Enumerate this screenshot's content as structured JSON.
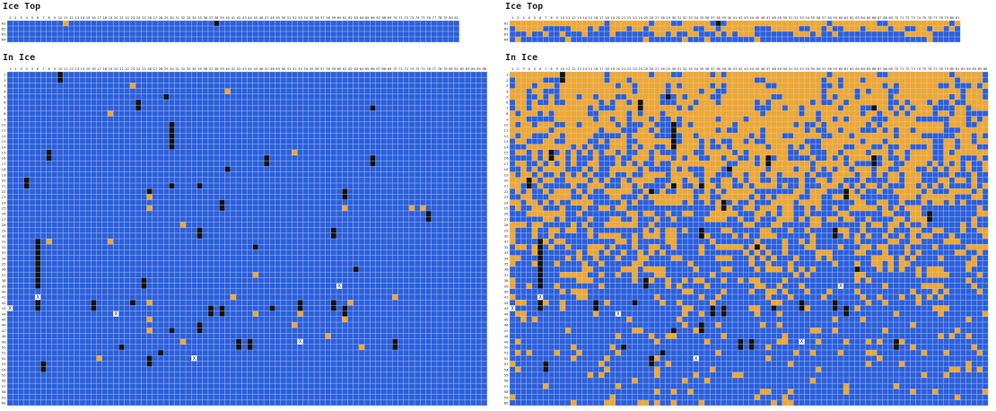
{
  "panels": [
    {
      "ice_top_title": "Ice Top",
      "in_ice_title": "In Ice",
      "ice_top": {
        "row_labels": [
          "61",
          "62",
          "63",
          "64"
        ],
        "cells": [
          [
            0,
            "11",
            "o"
          ],
          [
            0,
            "38",
            "k"
          ]
        ]
      },
      "in_ice": {
        "row_labels": [
          "1",
          "2",
          "3",
          "4",
          "5",
          "6",
          "7",
          "8",
          "9",
          "10",
          "11",
          "12",
          "13",
          "14",
          "15",
          "16",
          "17",
          "18",
          "19",
          "20",
          "21",
          "22",
          "23",
          "24",
          "25",
          "26",
          "27",
          "28",
          "29",
          "30",
          "31",
          "32",
          "33",
          "34",
          "35",
          "36",
          "37",
          "38",
          "39",
          "40",
          "41",
          "42",
          "43",
          "44",
          "45",
          "46",
          "47",
          "48",
          "49",
          "50",
          "51",
          "52",
          "53",
          "54",
          "55",
          "56",
          "57",
          "58",
          "59",
          "60"
        ],
        "cells": [
          [
            0,
            "10",
            "k"
          ],
          [
            1,
            "10",
            "k"
          ],
          [
            2,
            "23",
            "o"
          ],
          [
            3,
            "40",
            "o"
          ],
          [
            4,
            "29",
            "k"
          ],
          [
            5,
            "24",
            "k"
          ],
          [
            6,
            "24",
            "k"
          ],
          [
            6,
            "66",
            "k"
          ],
          [
            7,
            "19",
            "o"
          ],
          [
            9,
            "30",
            "k"
          ],
          [
            10,
            "30",
            "k"
          ],
          [
            11,
            "30",
            "k"
          ],
          [
            12,
            "30",
            "k"
          ],
          [
            13,
            "30",
            "k"
          ],
          [
            14,
            "8",
            "k"
          ],
          [
            15,
            "8",
            "k"
          ],
          [
            14,
            "52",
            "o"
          ],
          [
            15,
            "47",
            "k"
          ],
          [
            16,
            "47",
            "k"
          ],
          [
            15,
            "66",
            "k"
          ],
          [
            16,
            "66",
            "k"
          ],
          [
            17,
            "40",
            "k"
          ],
          [
            19,
            "4",
            "k"
          ],
          [
            20,
            "4",
            "k"
          ],
          [
            20,
            "30",
            "k"
          ],
          [
            20,
            "35",
            "k"
          ],
          [
            21,
            "26",
            "k"
          ],
          [
            22,
            "26",
            "o"
          ],
          [
            21,
            "61",
            "k"
          ],
          [
            22,
            "61",
            "k"
          ],
          [
            23,
            "39",
            "k"
          ],
          [
            24,
            "39",
            "k"
          ],
          [
            24,
            "26",
            "o"
          ],
          [
            24,
            "61",
            "o"
          ],
          [
            24,
            "73",
            "o"
          ],
          [
            24,
            "75",
            "o"
          ],
          [
            25,
            "76",
            "k"
          ],
          [
            26,
            "76",
            "k"
          ],
          [
            27,
            "32",
            "o"
          ],
          [
            28,
            "35",
            "k"
          ],
          [
            29,
            "35",
            "k"
          ],
          [
            28,
            "59",
            "k"
          ],
          [
            29,
            "59",
            "k"
          ],
          [
            30,
            "6",
            "k"
          ],
          [
            31,
            "6",
            "k"
          ],
          [
            32,
            "6",
            "k"
          ],
          [
            33,
            "6",
            "k"
          ],
          [
            34,
            "6",
            "k"
          ],
          [
            35,
            "6",
            "k"
          ],
          [
            36,
            "6",
            "k"
          ],
          [
            37,
            "6",
            "k"
          ],
          [
            38,
            "6",
            "k"
          ],
          [
            30,
            "8",
            "o"
          ],
          [
            30,
            "19",
            "o"
          ],
          [
            31,
            "45",
            "k"
          ],
          [
            36,
            "45",
            "o"
          ],
          [
            35,
            "63",
            "k"
          ],
          [
            37,
            "25",
            "k"
          ],
          [
            38,
            "25",
            "k"
          ],
          [
            38,
            "60",
            "x"
          ],
          [
            40,
            "6",
            "x"
          ],
          [
            41,
            "6",
            "k"
          ],
          [
            42,
            "6",
            "k"
          ],
          [
            42,
            "1",
            "x"
          ],
          [
            41,
            "16",
            "k"
          ],
          [
            42,
            "16",
            "k"
          ],
          [
            41,
            "23",
            "k"
          ],
          [
            41,
            "26",
            "o"
          ],
          [
            40,
            "41",
            "o"
          ],
          [
            41,
            "53",
            "k"
          ],
          [
            42,
            "53",
            "k"
          ],
          [
            41,
            "59",
            "k"
          ],
          [
            42,
            "59",
            "k"
          ],
          [
            41,
            "62",
            "o"
          ],
          [
            42,
            "61",
            "k"
          ],
          [
            43,
            "61",
            "k"
          ],
          [
            40,
            "70",
            "o"
          ],
          [
            43,
            "20",
            "x"
          ],
          [
            43,
            "45",
            "o"
          ],
          [
            43,
            "53",
            "o"
          ],
          [
            42,
            "37",
            "k"
          ],
          [
            43,
            "37",
            "k"
          ],
          [
            42,
            "39",
            "k"
          ],
          [
            43,
            "39",
            "k"
          ],
          [
            42,
            "48",
            "k"
          ],
          [
            44,
            "26",
            "o"
          ],
          [
            45,
            "35",
            "k"
          ],
          [
            46,
            "35",
            "k"
          ],
          [
            45,
            "52",
            "o"
          ],
          [
            44,
            "61",
            "o"
          ],
          [
            46,
            "26",
            "o"
          ],
          [
            46,
            "30",
            "k"
          ],
          [
            48,
            "32",
            "o"
          ],
          [
            47,
            "58",
            "o"
          ],
          [
            49,
            "21",
            "k"
          ],
          [
            49,
            "64",
            "o"
          ],
          [
            48,
            "42",
            "k"
          ],
          [
            49,
            "42",
            "k"
          ],
          [
            48,
            "44",
            "k"
          ],
          [
            49,
            "44",
            "k"
          ],
          [
            48,
            "53",
            "x"
          ],
          [
            48,
            "70",
            "k"
          ],
          [
            49,
            "70",
            "k"
          ],
          [
            50,
            "28",
            "k"
          ],
          [
            51,
            "34",
            "x"
          ],
          [
            51,
            "17",
            "o"
          ],
          [
            52,
            "7",
            "k"
          ],
          [
            53,
            "7",
            "k"
          ],
          [
            51,
            "26",
            "k"
          ],
          [
            52,
            "26",
            "k"
          ]
        ]
      }
    },
    {
      "ice_top_title": "Ice Top",
      "in_ice_title": "In Ice",
      "ice_top": {
        "row_labels": [
          "61",
          "62",
          "63",
          "64"
        ],
        "cells": [
          [
            0,
            "38",
            "k"
          ]
        ]
      },
      "in_ice": {
        "row_labels": [
          "1",
          "2",
          "3",
          "4",
          "5",
          "6",
          "7",
          "8",
          "9",
          "10",
          "11",
          "12",
          "13",
          "14",
          "15",
          "16",
          "17",
          "18",
          "19",
          "20",
          "21",
          "22",
          "23",
          "24",
          "25",
          "26",
          "27",
          "28",
          "29",
          "30",
          "31",
          "32",
          "33",
          "34",
          "35",
          "36",
          "37",
          "38",
          "39",
          "40",
          "41",
          "42",
          "43",
          "44",
          "45",
          "46",
          "47",
          "48",
          "49",
          "50",
          "51",
          "52",
          "53",
          "54",
          "55",
          "56",
          "57",
          "58",
          "59",
          "60"
        ],
        "cells": [
          [
            0,
            "10",
            "k"
          ],
          [
            1,
            "10",
            "k"
          ],
          [
            4,
            "29",
            "k"
          ],
          [
            5,
            "24",
            "k"
          ],
          [
            6,
            "24",
            "k"
          ],
          [
            6,
            "66",
            "k"
          ],
          [
            9,
            "30",
            "k"
          ],
          [
            10,
            "30",
            "k"
          ],
          [
            11,
            "30",
            "k"
          ],
          [
            12,
            "30",
            "k"
          ],
          [
            13,
            "30",
            "k"
          ],
          [
            14,
            "8",
            "k"
          ],
          [
            15,
            "8",
            "k"
          ],
          [
            15,
            "47",
            "k"
          ],
          [
            16,
            "47",
            "k"
          ],
          [
            15,
            "66",
            "k"
          ],
          [
            16,
            "66",
            "k"
          ],
          [
            17,
            "40",
            "k"
          ],
          [
            19,
            "4",
            "k"
          ],
          [
            20,
            "4",
            "k"
          ],
          [
            20,
            "30",
            "k"
          ],
          [
            20,
            "35",
            "k"
          ],
          [
            21,
            "26",
            "k"
          ],
          [
            21,
            "61",
            "k"
          ],
          [
            22,
            "61",
            "k"
          ],
          [
            23,
            "39",
            "k"
          ],
          [
            24,
            "39",
            "k"
          ],
          [
            25,
            "76",
            "k"
          ],
          [
            26,
            "76",
            "k"
          ],
          [
            28,
            "35",
            "k"
          ],
          [
            29,
            "35",
            "k"
          ],
          [
            28,
            "59",
            "k"
          ],
          [
            29,
            "59",
            "k"
          ],
          [
            30,
            "6",
            "k"
          ],
          [
            31,
            "6",
            "k"
          ],
          [
            32,
            "6",
            "k"
          ],
          [
            33,
            "6",
            "k"
          ],
          [
            34,
            "6",
            "k"
          ],
          [
            35,
            "6",
            "k"
          ],
          [
            36,
            "6",
            "k"
          ],
          [
            37,
            "6",
            "k"
          ],
          [
            38,
            "6",
            "k"
          ],
          [
            31,
            "45",
            "k"
          ],
          [
            35,
            "63",
            "k"
          ],
          [
            37,
            "25",
            "k"
          ],
          [
            38,
            "25",
            "k"
          ],
          [
            38,
            "60",
            "x"
          ],
          [
            40,
            "6",
            "x"
          ],
          [
            41,
            "6",
            "k"
          ],
          [
            42,
            "6",
            "k"
          ],
          [
            42,
            "1",
            "x"
          ],
          [
            41,
            "16",
            "k"
          ],
          [
            42,
            "16",
            "k"
          ],
          [
            41,
            "23",
            "k"
          ],
          [
            41,
            "53",
            "k"
          ],
          [
            42,
            "53",
            "k"
          ],
          [
            41,
            "59",
            "k"
          ],
          [
            42,
            "59",
            "k"
          ],
          [
            42,
            "61",
            "k"
          ],
          [
            43,
            "61",
            "k"
          ],
          [
            43,
            "20",
            "x"
          ],
          [
            42,
            "37",
            "k"
          ],
          [
            43,
            "37",
            "k"
          ],
          [
            42,
            "39",
            "k"
          ],
          [
            43,
            "39",
            "k"
          ],
          [
            42,
            "48",
            "k"
          ],
          [
            45,
            "35",
            "k"
          ],
          [
            46,
            "35",
            "k"
          ],
          [
            46,
            "30",
            "k"
          ],
          [
            49,
            "21",
            "k"
          ],
          [
            48,
            "42",
            "k"
          ],
          [
            49,
            "42",
            "k"
          ],
          [
            48,
            "44",
            "k"
          ],
          [
            49,
            "44",
            "k"
          ],
          [
            48,
            "53",
            "x"
          ],
          [
            48,
            "70",
            "k"
          ],
          [
            49,
            "70",
            "k"
          ],
          [
            50,
            "28",
            "k"
          ],
          [
            51,
            "34",
            "x"
          ],
          [
            52,
            "7",
            "k"
          ],
          [
            53,
            "7",
            "k"
          ],
          [
            51,
            "26",
            "k"
          ],
          [
            52,
            "26",
            "k"
          ]
        ]
      }
    }
  ],
  "colors": {
    "blue": "#2b5fdc",
    "orange": "#f2a72a",
    "black": "#111111",
    "x_cell": "#ffffff",
    "grid_line": "#c8d3ee"
  }
}
